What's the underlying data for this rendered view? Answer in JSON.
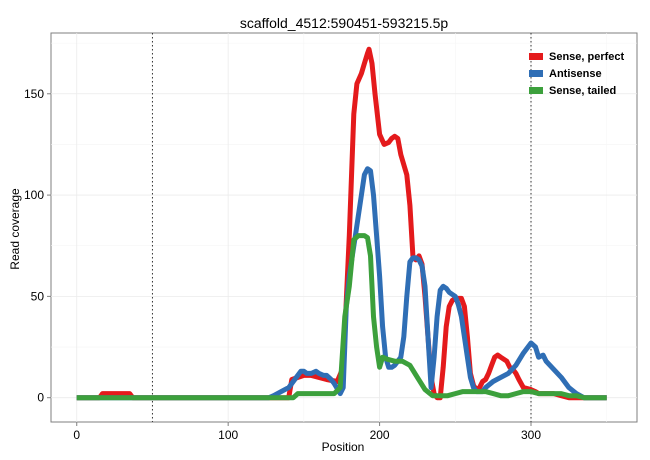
{
  "chart_data": {
    "type": "line",
    "title": "scaffold_4512:590451-593215.5p",
    "xlabel": "Position",
    "ylabel": "Read coverage",
    "xlim": [
      -17,
      370
    ],
    "ylim": [
      -12,
      180
    ],
    "xticks": [
      0,
      100,
      200,
      300
    ],
    "yticks": [
      0,
      50,
      100,
      150
    ],
    "grid": true,
    "legend_position": "top-right",
    "vlines": [
      50,
      300
    ],
    "series": [
      {
        "name": "Sense, perfect",
        "color": "#e41a1c",
        "x": [
          0,
          15,
          17,
          35,
          37,
          140,
          142,
          150,
          155,
          165,
          172,
          176,
          180,
          183,
          185,
          188,
          190,
          192,
          193,
          195,
          197,
          200,
          203,
          206,
          208,
          210,
          212,
          214,
          216,
          218,
          220,
          222,
          224,
          226,
          228,
          230,
          232,
          234,
          236,
          238,
          240,
          242,
          244,
          246,
          248,
          250,
          252,
          254,
          256,
          258,
          260,
          262,
          264,
          266,
          268,
          270,
          272,
          274,
          276,
          278,
          280,
          284,
          286,
          288,
          290,
          292,
          295,
          300,
          303,
          305,
          310,
          315,
          320,
          325,
          330,
          335,
          340,
          350
        ],
        "y": [
          0,
          0,
          2,
          2,
          0,
          0,
          9,
          11,
          11,
          9,
          8,
          15,
          80,
          140,
          155,
          160,
          165,
          170,
          172,
          165,
          150,
          130,
          125,
          126,
          128,
          129,
          128,
          120,
          115,
          110,
          95,
          70,
          68,
          70,
          66,
          50,
          30,
          10,
          2,
          0,
          0,
          15,
          35,
          45,
          48,
          49,
          49,
          49,
          45,
          30,
          12,
          6,
          4,
          5,
          8,
          9,
          12,
          16,
          20,
          21,
          20,
          18,
          15,
          14,
          12,
          9,
          5,
          4,
          3,
          2,
          2,
          2,
          1,
          0,
          0,
          0,
          0,
          0
        ]
      },
      {
        "name": "Antisense",
        "color": "#2f6eb5",
        "x": [
          0,
          127,
          130,
          135,
          140,
          143,
          145,
          148,
          150,
          152,
          155,
          158,
          160,
          163,
          165,
          168,
          170,
          174,
          176,
          178,
          180,
          182,
          184,
          186,
          188,
          190,
          192,
          194,
          196,
          198,
          200,
          202,
          204,
          206,
          208,
          210,
          212,
          214,
          216,
          218,
          220,
          222,
          224,
          226,
          228,
          230,
          232,
          234,
          236,
          238,
          240,
          242,
          244,
          246,
          248,
          250,
          252,
          254,
          256,
          258,
          260,
          262,
          264,
          266,
          268,
          270,
          275,
          280,
          285,
          290,
          295,
          300,
          303,
          305,
          308,
          310,
          315,
          320,
          325,
          330,
          335,
          340,
          350
        ],
        "y": [
          0,
          0,
          1,
          3,
          5,
          8,
          10,
          13,
          13,
          12,
          12,
          13,
          12,
          11,
          11,
          9,
          7,
          2,
          5,
          45,
          60,
          70,
          80,
          90,
          100,
          110,
          113,
          112,
          100,
          80,
          60,
          35,
          20,
          15,
          15,
          16,
          18,
          20,
          30,
          50,
          67,
          69,
          69,
          68,
          65,
          55,
          30,
          5,
          20,
          40,
          53,
          55,
          54,
          52,
          51,
          50,
          46,
          40,
          30,
          20,
          10,
          5,
          3,
          3,
          3,
          5,
          8,
          10,
          12,
          16,
          22,
          27,
          25,
          20,
          21,
          18,
          14,
          10,
          5,
          2,
          0,
          0,
          0
        ]
      },
      {
        "name": "Sense, tailed",
        "color": "#3ca03c",
        "x": [
          0,
          143,
          146,
          160,
          170,
          174,
          177,
          180,
          183,
          186,
          188,
          190,
          192,
          194,
          196,
          198,
          200,
          202,
          205,
          210,
          215,
          220,
          225,
          230,
          235,
          240,
          245,
          250,
          255,
          260,
          265,
          270,
          275,
          280,
          285,
          290,
          295,
          300,
          305,
          310,
          315,
          320,
          325,
          330,
          335,
          340,
          350
        ],
        "y": [
          0,
          0,
          2,
          2,
          2,
          5,
          40,
          55,
          78,
          80,
          80,
          80,
          79,
          70,
          40,
          25,
          15,
          20,
          19,
          18,
          18,
          16,
          10,
          4,
          1,
          1,
          1,
          2,
          3,
          3,
          3,
          3,
          2,
          1,
          1,
          2,
          3,
          3,
          2,
          2,
          2,
          2,
          1,
          1,
          0,
          0,
          0
        ]
      }
    ]
  }
}
